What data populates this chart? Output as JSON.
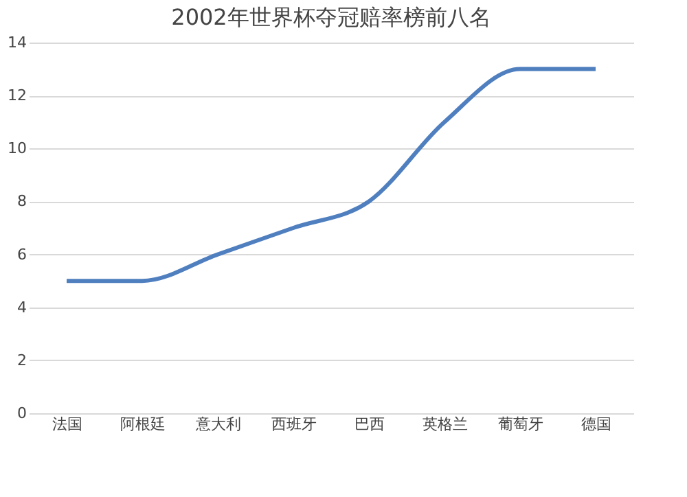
{
  "chart_data": {
    "type": "line",
    "title": "2002年世界杯夺冠赔率榜前八名",
    "categories": [
      "法国",
      "阿根廷",
      "意大利",
      "西班牙",
      "巴西",
      "英格兰",
      "葡萄牙",
      "德国"
    ],
    "series": [
      {
        "color": "#4f7fbf",
        "values": [
          5,
          5,
          6,
          7,
          8,
          11,
          13,
          13
        ]
      }
    ],
    "ylim": [
      0,
      14
    ],
    "yticks": [
      0,
      2,
      4,
      6,
      8,
      10,
      12,
      14
    ],
    "grid": "y",
    "marker": "none",
    "line_style": "solid"
  }
}
